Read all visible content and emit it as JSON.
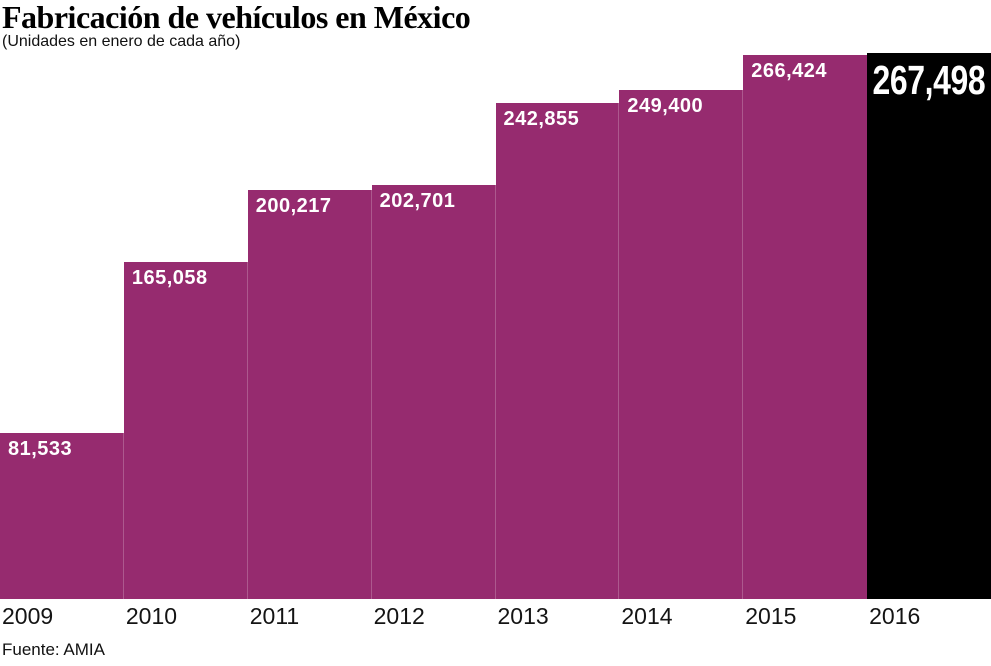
{
  "header": {
    "title": "Fabricación de vehículos en México",
    "subtitle": "(Unidades en enero de cada año)"
  },
  "source": "Fuente: AMIA",
  "colors": {
    "bar": "#962B6F",
    "highlight_bar": "#000000",
    "value_label": "#FFFFFF",
    "axis_label": "#141414",
    "background": "#FFFFFF"
  },
  "chart_data": {
    "type": "bar",
    "title": "Fabricación de vehículos en México",
    "subtitle": "(Unidades en enero de cada año)",
    "categories": [
      "2009",
      "2010",
      "2011",
      "2012",
      "2013",
      "2014",
      "2015",
      "2016"
    ],
    "values": [
      81533,
      165058,
      200217,
      202701,
      242855,
      249400,
      266424,
      267498
    ],
    "value_labels": [
      "81,533",
      "165,058",
      "200,217",
      "202,701",
      "242,855",
      "249,400",
      "266,424",
      "267,498"
    ],
    "highlight_index": 7,
    "xlabel": "",
    "ylabel": "",
    "ylim": [
      0,
      267498
    ],
    "grid": false,
    "legend": false,
    "source": "Fuente: AMIA"
  }
}
